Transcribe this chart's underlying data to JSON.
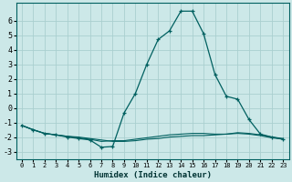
{
  "xlabel": "Humidex (Indice chaleur)",
  "xlim": [
    -0.5,
    23.5
  ],
  "ylim": [
    -3.5,
    7.2
  ],
  "yticks": [
    -3,
    -2,
    -1,
    0,
    1,
    2,
    3,
    4,
    5,
    6
  ],
  "xticks": [
    0,
    1,
    2,
    3,
    4,
    5,
    6,
    7,
    8,
    9,
    10,
    11,
    12,
    13,
    14,
    15,
    16,
    17,
    18,
    19,
    20,
    21,
    22,
    23
  ],
  "bg_color": "#cce8e8",
  "grid_color": "#aacfcf",
  "line_color": "#006060",
  "line1_x": [
    0,
    1,
    2,
    3,
    4,
    5,
    6,
    7,
    8,
    9,
    10,
    11,
    12,
    13,
    14,
    15,
    16,
    17,
    18,
    19,
    20,
    21,
    22,
    23
  ],
  "line1_y": [
    -1.2,
    -1.5,
    -1.75,
    -1.85,
    -2.0,
    -2.1,
    -2.2,
    -2.7,
    -2.65,
    -0.35,
    1.0,
    3.0,
    4.7,
    5.3,
    6.65,
    6.65,
    5.1,
    2.3,
    0.8,
    0.6,
    -0.8,
    -1.8,
    -2.0,
    -2.15
  ],
  "line2_x": [
    0,
    1,
    2,
    3,
    4,
    5,
    6,
    7,
    8,
    9,
    10,
    11,
    12,
    13,
    14,
    15,
    16,
    17,
    18,
    19,
    20,
    21,
    22,
    23
  ],
  "line2_y": [
    -1.2,
    -1.5,
    -1.75,
    -1.85,
    -1.95,
    -2.0,
    -2.1,
    -2.2,
    -2.3,
    -2.3,
    -2.25,
    -2.15,
    -2.1,
    -2.0,
    -1.95,
    -1.9,
    -1.9,
    -1.85,
    -1.8,
    -1.75,
    -1.8,
    -1.9,
    -2.05,
    -2.15
  ],
  "line3_x": [
    0,
    1,
    2,
    3,
    4,
    5,
    6,
    7,
    8,
    9,
    10,
    11,
    12,
    13,
    14,
    15,
    16,
    17,
    18,
    19,
    20,
    21,
    22,
    23
  ],
  "line3_y": [
    -1.2,
    -1.5,
    -1.75,
    -1.85,
    -1.95,
    -2.05,
    -2.15,
    -2.3,
    -2.25,
    -2.25,
    -2.15,
    -2.05,
    -1.95,
    -1.85,
    -1.8,
    -1.75,
    -1.75,
    -1.8,
    -1.8,
    -1.7,
    -1.75,
    -1.85,
    -2.0,
    -2.1
  ]
}
